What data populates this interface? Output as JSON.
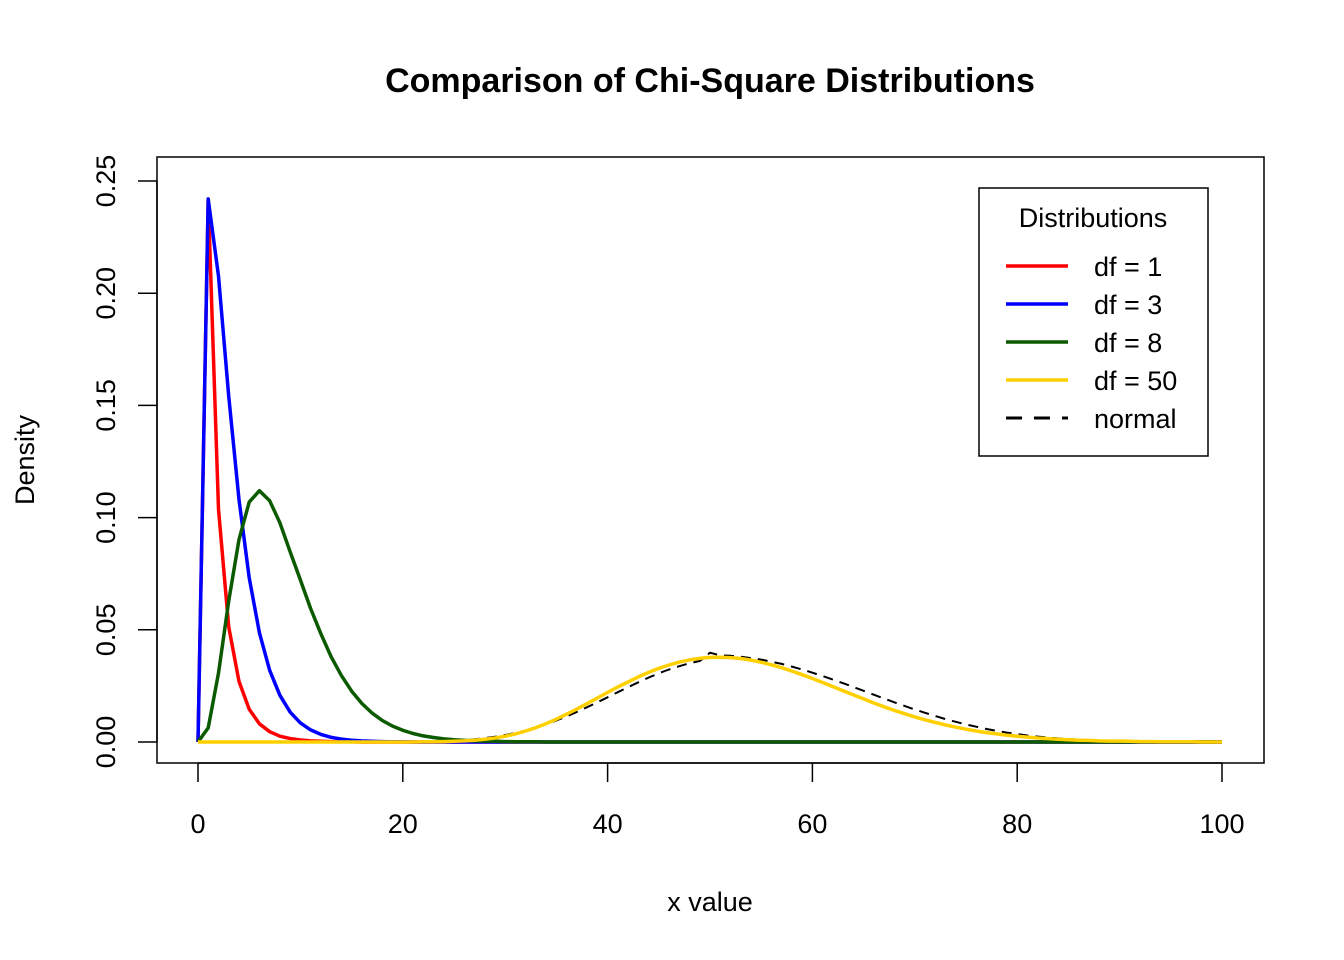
{
  "chart_data": {
    "type": "line",
    "title": "Comparison of Chi-Square Distributions",
    "xlabel": "x value",
    "ylabel": "Density",
    "xlim": [
      0,
      100
    ],
    "ylim": [
      0,
      0.25
    ],
    "xticks": [
      0,
      20,
      40,
      60,
      80,
      100
    ],
    "yticks": [
      0.0,
      0.05,
      0.1,
      0.15,
      0.2,
      0.25
    ],
    "xtick_labels": [
      "0",
      "20",
      "40",
      "60",
      "80",
      "100"
    ],
    "ytick_labels": [
      "0.00",
      "0.05",
      "0.10",
      "0.15",
      "0.20",
      "0.25"
    ],
    "grid": false,
    "x": [
      0,
      1,
      2,
      3,
      4,
      5,
      6,
      7,
      8,
      9,
      10,
      11,
      12,
      13,
      14,
      15,
      16,
      17,
      18,
      19,
      20,
      21,
      22,
      23,
      24,
      25,
      26,
      27,
      28,
      29,
      30,
      31,
      32,
      33,
      34,
      35,
      36,
      37,
      38,
      39,
      40,
      41,
      42,
      43,
      44,
      45,
      46,
      47,
      48,
      49,
      50,
      51,
      52,
      53,
      54,
      55,
      56,
      57,
      58,
      59,
      60,
      61,
      62,
      63,
      64,
      65,
      66,
      67,
      68,
      69,
      70,
      71,
      72,
      73,
      74,
      75,
      76,
      77,
      78,
      79,
      80,
      81,
      82,
      83,
      84,
      85,
      86,
      87,
      88,
      89,
      90,
      91,
      92,
      93,
      94,
      95,
      96,
      97,
      98,
      99,
      100
    ],
    "series": [
      {
        "name": "df = 1",
        "color": "#ff0000",
        "dash": "solid",
        "values": [
          0,
          0.242,
          0.1038,
          0.0514,
          0.027,
          0.0146,
          0.0081,
          0.0046,
          0.0026,
          0.0015,
          0.0009,
          0.0005,
          0.0003,
          0.0002,
          0.0001,
          0.0001,
          0,
          0,
          0,
          0,
          0,
          0,
          0,
          0,
          0,
          0,
          0,
          0,
          0,
          0,
          0,
          0,
          0,
          0,
          0,
          0,
          0,
          0,
          0,
          0,
          0,
          0,
          0,
          0,
          0,
          0,
          0,
          0,
          0,
          0,
          0,
          0,
          0,
          0,
          0,
          0,
          0,
          0,
          0,
          0,
          0,
          0,
          0,
          0,
          0,
          0,
          0,
          0,
          0,
          0,
          0,
          0,
          0,
          0,
          0,
          0,
          0,
          0,
          0,
          0,
          0,
          0,
          0,
          0,
          0,
          0,
          0,
          0,
          0,
          0,
          0,
          0,
          0,
          0,
          0,
          0,
          0,
          0,
          0,
          0,
          0
        ]
      },
      {
        "name": "df = 3",
        "color": "#0000ff",
        "dash": "solid",
        "values": [
          0,
          0.242,
          0.2076,
          0.1542,
          0.108,
          0.0732,
          0.0487,
          0.0319,
          0.0208,
          0.0133,
          0.0085,
          0.0054,
          0.0034,
          0.0021,
          0.0013,
          0.0008,
          0.0005,
          0.0003,
          0.0002,
          0.0001,
          0.0001,
          0,
          0,
          0,
          0,
          0,
          0,
          0,
          0,
          0,
          0,
          0,
          0,
          0,
          0,
          0,
          0,
          0,
          0,
          0,
          0,
          0,
          0,
          0,
          0,
          0,
          0,
          0,
          0,
          0,
          0,
          0,
          0,
          0,
          0,
          0,
          0,
          0,
          0,
          0,
          0,
          0,
          0,
          0,
          0,
          0,
          0,
          0,
          0,
          0,
          0,
          0,
          0,
          0,
          0,
          0,
          0,
          0,
          0,
          0,
          0,
          0,
          0,
          0,
          0,
          0,
          0,
          0,
          0,
          0,
          0,
          0,
          0,
          0,
          0,
          0,
          0,
          0,
          0,
          0,
          0
        ]
      },
      {
        "name": "df = 8",
        "color": "#0b5a00",
        "dash": "solid",
        "values": [
          0,
          0.0063,
          0.0307,
          0.0628,
          0.0902,
          0.1069,
          0.112,
          0.1075,
          0.0977,
          0.0847,
          0.0722,
          0.0595,
          0.0482,
          0.038,
          0.0296,
          0.0227,
          0.0172,
          0.0129,
          0.0096,
          0.0071,
          0.0052,
          0.0038,
          0.0027,
          0.002,
          0.0014,
          0.001,
          0.0007,
          0.0005,
          0.0004,
          0.0003,
          0.0002,
          0.0001,
          0.0001,
          0.0001,
          0,
          0,
          0,
          0,
          0,
          0,
          0,
          0,
          0,
          0,
          0,
          0,
          0,
          0,
          0,
          0,
          0,
          0,
          0,
          0,
          0,
          0,
          0,
          0,
          0,
          0,
          0,
          0,
          0,
          0,
          0,
          0,
          0,
          0,
          0,
          0,
          0,
          0,
          0,
          0,
          0,
          0,
          0,
          0,
          0,
          0,
          0,
          0,
          0,
          0,
          0,
          0,
          0,
          0,
          0,
          0,
          0,
          0,
          0,
          0,
          0,
          0,
          0,
          0,
          0,
          0,
          0
        ]
      },
      {
        "name": "df = 50",
        "color": "#ffd000",
        "dash": "solid",
        "values": [
          0,
          0,
          0,
          0,
          0,
          0,
          0,
          0,
          0,
          0,
          0,
          0,
          0,
          0,
          0,
          0,
          0,
          0,
          0,
          0,
          0,
          0,
          0.0001,
          0.0001,
          0.0002,
          0.0003,
          0.0005,
          0.0008,
          0.0012,
          0.0018,
          0.0026,
          0.0036,
          0.0049,
          0.0064,
          0.0082,
          0.0102,
          0.0124,
          0.0147,
          0.0171,
          0.0196,
          0.0221,
          0.0245,
          0.0268,
          0.029,
          0.031,
          0.0328,
          0.0343,
          0.0356,
          0.0366,
          0.0373,
          0.0377,
          0.0378,
          0.0376,
          0.0372,
          0.0365,
          0.0355,
          0.0344,
          0.0331,
          0.0316,
          0.03,
          0.0283,
          0.0265,
          0.0247,
          0.0228,
          0.021,
          0.0192,
          0.0174,
          0.0157,
          0.0141,
          0.0126,
          0.0112,
          0.0099,
          0.0087,
          0.0076,
          0.0066,
          0.0057,
          0.0049,
          0.0042,
          0.0036,
          0.003,
          0.0026,
          0.0022,
          0.0018,
          0.0015,
          0.0012,
          0.001,
          0.0008,
          0.0007,
          0.0005,
          0.0004,
          0.0004,
          0.0003,
          0.0002,
          0.0002,
          0.0001,
          0.0001,
          0.0001,
          0.0001,
          0,
          0,
          0
        ]
      },
      {
        "name": "normal",
        "color": "#000000",
        "dash": "dashed",
        "values": [
          0,
          0,
          0,
          0,
          0,
          0,
          0,
          0,
          0,
          0,
          0,
          0,
          0,
          0,
          0,
          0,
          0,
          0,
          0,
          0,
          0,
          0.0001,
          0.0002,
          0.0003,
          0.0004,
          0.0006,
          0.0009,
          0.0012,
          0.0017,
          0.0023,
          0.0031,
          0.004,
          0.0051,
          0.0064,
          0.0079,
          0.0096,
          0.0114,
          0.0134,
          0.0155,
          0.0177,
          0.0199,
          0.0222,
          0.0244,
          0.0266,
          0.0287,
          0.0306,
          0.0323,
          0.0338,
          0.0351,
          0.0361,
          0.0398,
          0.0386,
          0.0384,
          0.038,
          0.0374,
          0.0367,
          0.0358,
          0.0348,
          0.0336,
          0.0323,
          0.0309,
          0.0294,
          0.0278,
          0.0262,
          0.0245,
          0.0228,
          0.0211,
          0.0194,
          0.0177,
          0.0161,
          0.0145,
          0.013,
          0.0116,
          0.0102,
          0.009,
          0.0078,
          0.0068,
          0.0058,
          0.005,
          0.0042,
          0.0035,
          0.0029,
          0.0024,
          0.002,
          0.0016,
          0.0013,
          0.001,
          0.0008,
          0.0006,
          0.0005,
          0.0004,
          0.0003,
          0.0002,
          0.0002,
          0.0001,
          0.0001,
          0.0001,
          0,
          0,
          0,
          0
        ]
      }
    ],
    "legend": {
      "title": "Distributions",
      "placement": "top-right",
      "entries": [
        "df = 1",
        "df = 3",
        "df = 8",
        "df = 50",
        "normal"
      ]
    }
  }
}
